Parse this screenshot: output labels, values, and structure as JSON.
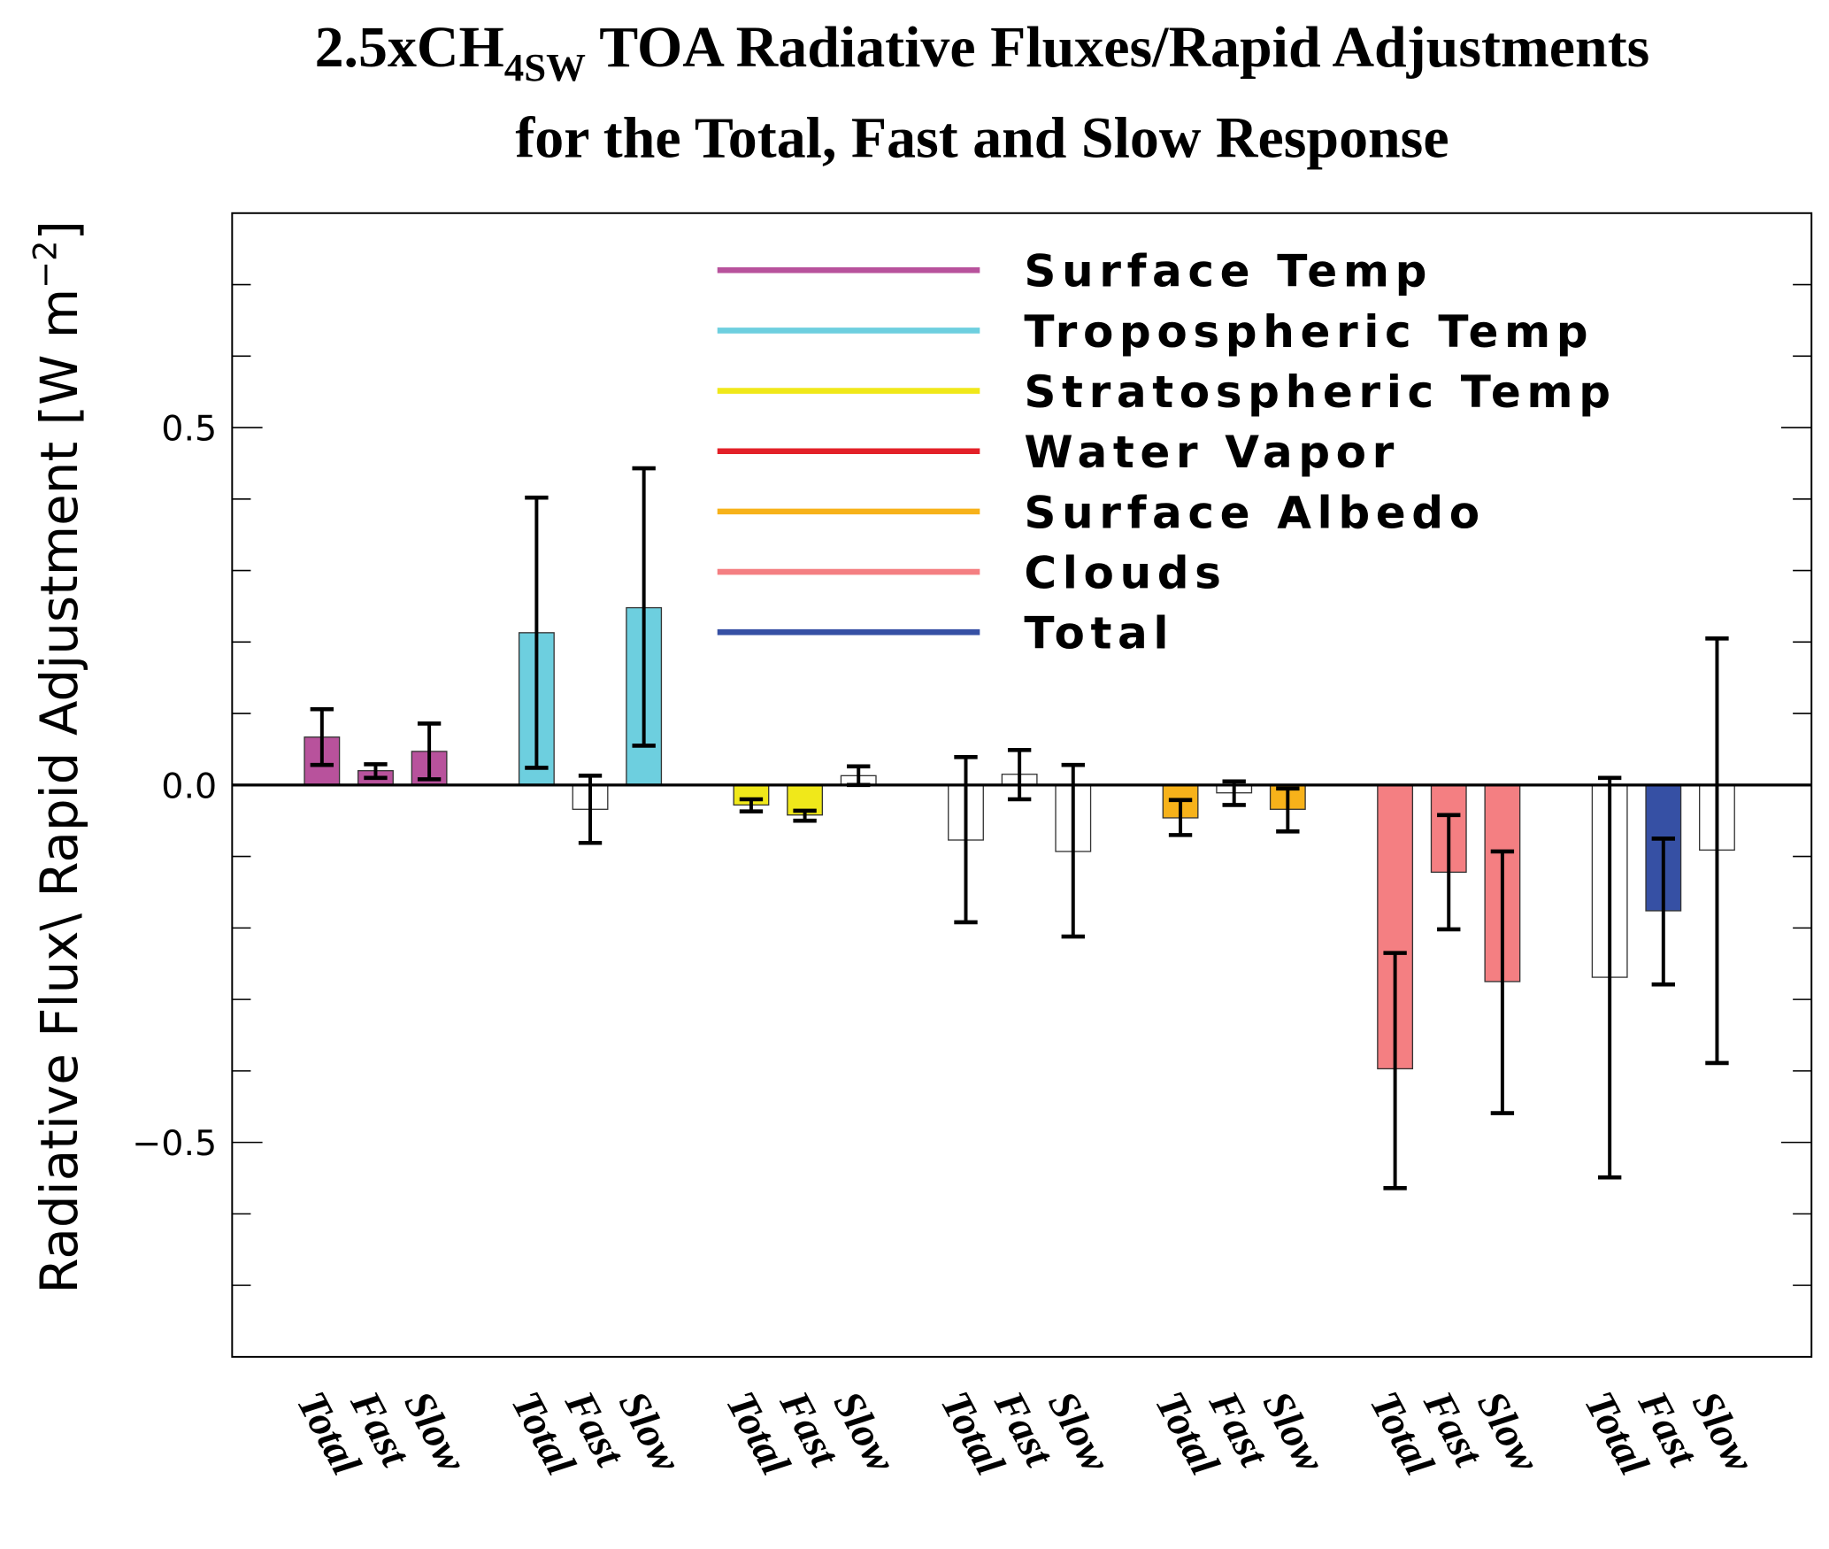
{
  "chart_data": {
    "type": "bar",
    "title_line1_prefix": "2.5xCH",
    "title_line1_sub": "4SW",
    "title_line1_suffix": " TOA Radiative Fluxes/Rapid Adjustments",
    "title_line2": "for the Total, Fast and Slow Response",
    "ylabel": "Radiative Flux\\ Rapid Adjustment [W m",
    "ylabel_sup": "−2",
    "ylabel_end": "]",
    "ylim": [
      -0.8,
      0.8
    ],
    "yticks": [
      {
        "value": -0.5,
        "label": "−0.5"
      },
      {
        "value": 0.0,
        "label": "0.0"
      },
      {
        "value": 0.5,
        "label": "0.5"
      }
    ],
    "minor_tick_step": 0.1,
    "x_sublabels": [
      "Total",
      "Fast",
      "Slow"
    ],
    "legend_position": "top-right",
    "grid": false,
    "series": [
      {
        "name": "Surface Temp",
        "color": "#b8529c",
        "values": [
          0.067,
          0.02,
          0.047
        ],
        "err_high": [
          0.106,
          0.029,
          0.086
        ],
        "err_low": [
          0.028,
          0.01,
          0.008
        ],
        "filled": [
          true,
          true,
          true
        ]
      },
      {
        "name": "Tropospheric Temp",
        "color": "#6dcfdf",
        "values": [
          0.213,
          -0.034,
          0.248
        ],
        "err_high": [
          0.402,
          0.013,
          0.443
        ],
        "err_low": [
          0.024,
          -0.081,
          0.055
        ],
        "filled": [
          true,
          false,
          true
        ]
      },
      {
        "name": "Stratospheric Temp",
        "color": "#f0e81a",
        "values": [
          -0.028,
          -0.042,
          0.013
        ],
        "err_high": [
          -0.02,
          -0.036,
          0.026
        ],
        "err_low": [
          -0.037,
          -0.05,
          0.0
        ],
        "filled": [
          true,
          true,
          false
        ]
      },
      {
        "name": "Water Vapor",
        "color": "#e32028",
        "values": [
          -0.077,
          0.015,
          -0.093
        ],
        "err_high": [
          0.039,
          0.049,
          0.028
        ],
        "err_low": [
          -0.192,
          -0.02,
          -0.212
        ],
        "filled": [
          false,
          false,
          false
        ]
      },
      {
        "name": "Surface Albedo",
        "color": "#f7b21a",
        "values": [
          -0.046,
          -0.011,
          -0.034
        ],
        "err_high": [
          -0.021,
          0.005,
          -0.005
        ],
        "err_low": [
          -0.07,
          -0.028,
          -0.065
        ],
        "filled": [
          true,
          false,
          true
        ]
      },
      {
        "name": "Clouds",
        "color": "#f47f82",
        "values": [
          -0.397,
          -0.122,
          -0.275
        ],
        "err_high": [
          -0.235,
          -0.042,
          -0.093
        ],
        "err_low": [
          -0.564,
          -0.202,
          -0.459
        ],
        "filled": [
          true,
          true,
          true
        ]
      },
      {
        "name": "Total",
        "color": "#3650a4",
        "values": [
          -0.269,
          -0.176,
          -0.091
        ],
        "err_high": [
          0.01,
          -0.075,
          0.205
        ],
        "err_low": [
          -0.549,
          -0.279,
          -0.389
        ],
        "filled": [
          false,
          true,
          false
        ]
      }
    ]
  }
}
